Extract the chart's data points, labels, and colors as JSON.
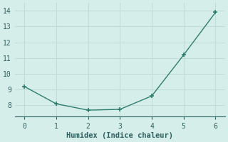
{
  "x": [
    0,
    1,
    2,
    3,
    4,
    5,
    6
  ],
  "y": [
    9.2,
    8.1,
    7.7,
    7.75,
    8.6,
    11.2,
    13.9
  ],
  "line_color": "#2d7d6e",
  "marker_color": "#2d7d6e",
  "bg_color": "#d6eeea",
  "grid_color": "#c0dcd8",
  "axis_color": "#2d7d6e",
  "xlabel": "Humidex (Indice chaleur)",
  "xlim": [
    -0.3,
    6.3
  ],
  "ylim": [
    7.3,
    14.5
  ],
  "yticks": [
    8,
    9,
    10,
    11,
    12,
    13,
    14
  ],
  "xticks": [
    0,
    1,
    2,
    3,
    4,
    5,
    6
  ],
  "tick_color": "#2d6060",
  "label_fontsize": 7.5,
  "tick_fontsize": 7
}
